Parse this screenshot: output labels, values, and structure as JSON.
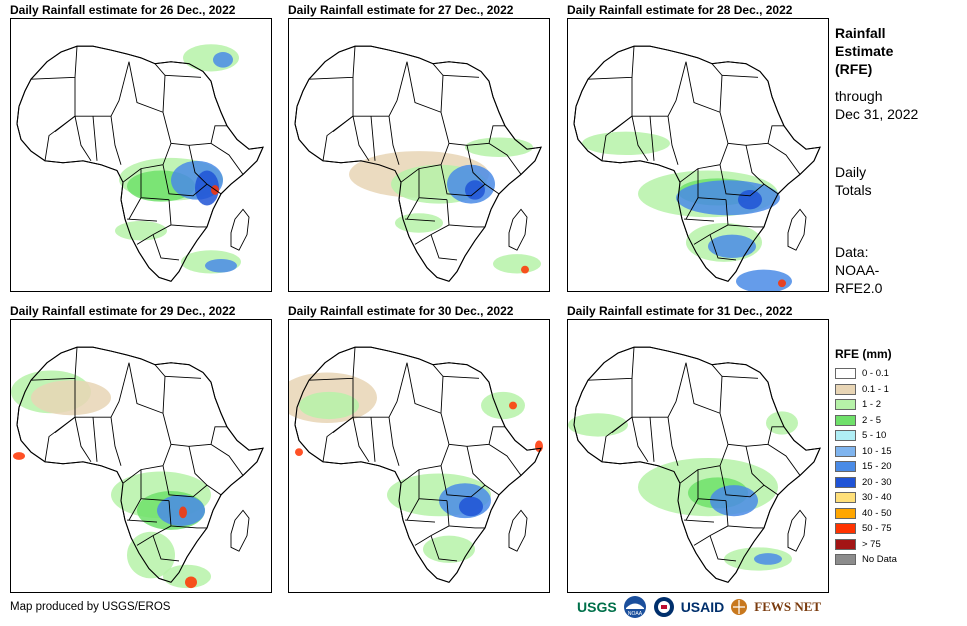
{
  "panels": [
    {
      "id": "p1",
      "title": "Daily Rainfall estimate for 26 Dec., 2022"
    },
    {
      "id": "p2",
      "title": "Daily Rainfall estimate for 27 Dec., 2022"
    },
    {
      "id": "p3",
      "title": "Daily Rainfall estimate for 28 Dec., 2022"
    },
    {
      "id": "p4",
      "title": "Daily Rainfall estimate for 29 Dec., 2022"
    },
    {
      "id": "p5",
      "title": "Daily Rainfall estimate for 30 Dec., 2022"
    },
    {
      "id": "p6",
      "title": "Daily Rainfall estimate for 31 Dec., 2022"
    }
  ],
  "side": {
    "title_line1": "Rainfall",
    "title_line2": "Estimate",
    "title_line3": "(RFE)",
    "through_line1": "through",
    "through_line2": "Dec 31, 2022",
    "daily_line1": "Daily",
    "daily_line2": "Totals",
    "data_line1": "Data:",
    "data_line2": "NOAA-",
    "data_line3": "RFE2.0"
  },
  "legend": {
    "title": "RFE (mm)",
    "items": [
      {
        "label": "0 - 0.1",
        "color": "#ffffff"
      },
      {
        "label": "0.1 - 1",
        "color": "#e8d5b5"
      },
      {
        "label": "1 - 2",
        "color": "#b6f2a8"
      },
      {
        "label": "2 - 5",
        "color": "#6fe06a"
      },
      {
        "label": "5 - 10",
        "color": "#b0eef5"
      },
      {
        "label": "10 - 15",
        "color": "#7fb4ee"
      },
      {
        "label": "15 - 20",
        "color": "#4a8be6"
      },
      {
        "label": "20 - 30",
        "color": "#1f53d6"
      },
      {
        "label": "30 - 40",
        "color": "#ffe07a"
      },
      {
        "label": "40 - 50",
        "color": "#ffa600"
      },
      {
        "label": "50 - 75",
        "color": "#ff3300"
      },
      {
        "label": "> 75",
        "color": "#a31515"
      },
      {
        "label": "No Data",
        "color": "#8c8c8c"
      }
    ]
  },
  "credit": "Map produced by USGS/EROS",
  "logos": [
    "USGS",
    "NOAA",
    "USAID",
    "FEWS NET"
  ]
}
